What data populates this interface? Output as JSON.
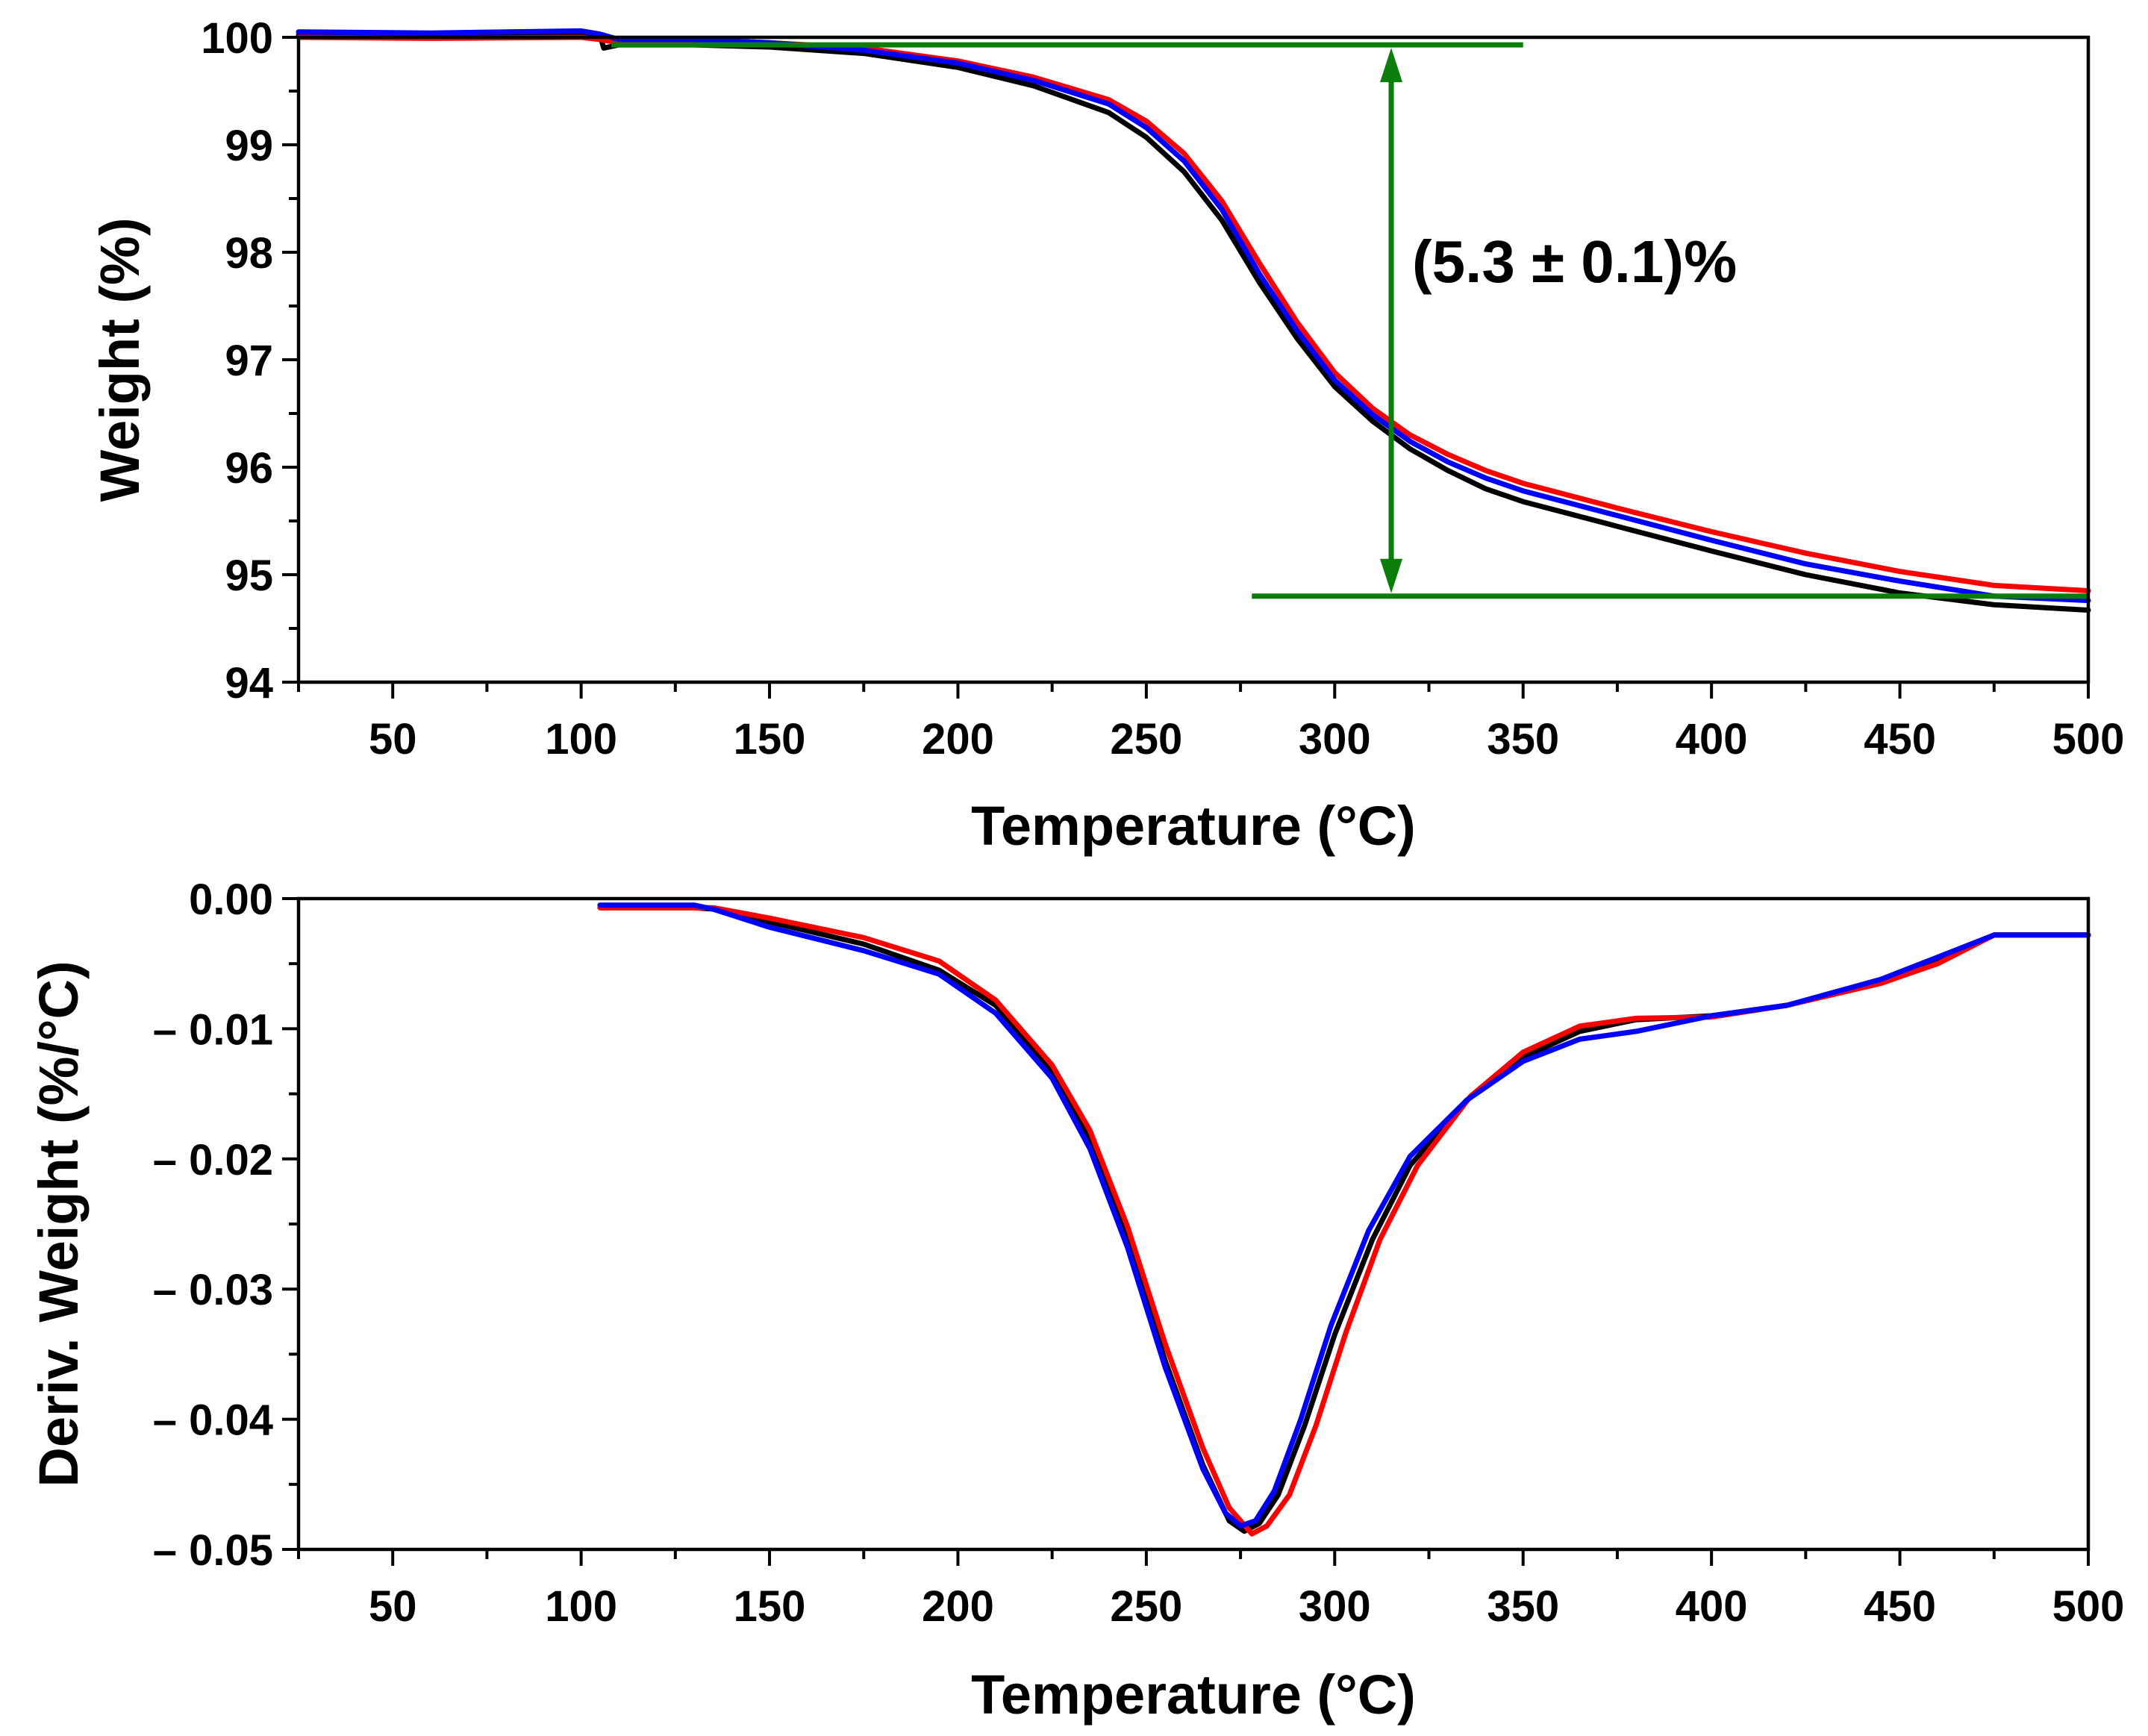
{
  "colors": {
    "black_series": "#000000",
    "red_series": "#ff0000",
    "blue_series": "#0000ff",
    "annotation": "#0a7d0a"
  },
  "chart_data": [
    {
      "type": "line",
      "panel": "top",
      "xlabel": "Temperature (°C)",
      "ylabel": "Weight (%)",
      "xlim": [
        25,
        500
      ],
      "ylim": [
        94,
        100
      ],
      "x_ticks": [
        50,
        100,
        150,
        200,
        250,
        300,
        350,
        400,
        450,
        500
      ],
      "x_tick_labels": [
        "50",
        "100",
        "150",
        "200",
        "250",
        "300",
        "350",
        "400",
        "450",
        "500"
      ],
      "y_ticks": [
        94,
        95,
        96,
        97,
        98,
        99,
        100
      ],
      "y_tick_labels": [
        "94",
        "95",
        "96",
        "97",
        "98",
        "99",
        "100"
      ],
      "annotation": {
        "text": "(5.3 ± 0.1)%",
        "upper_level": 99.93,
        "lower_level": 94.8,
        "upper_line_x": [
          108,
          350
        ],
        "lower_line_x": [
          278,
          500
        ],
        "arrow_x": 315
      },
      "series": [
        {
          "name": "sample-black",
          "color": "#000000",
          "points": [
            [
              25,
              100.02
            ],
            [
              60,
              100.01
            ],
            [
              100,
              100.03
            ],
            [
              105,
              100.02
            ],
            [
              106,
              99.9
            ],
            [
              110,
              99.93
            ],
            [
              130,
              99.93
            ],
            [
              150,
              99.91
            ],
            [
              175,
              99.85
            ],
            [
              200,
              99.72
            ],
            [
              220,
              99.55
            ],
            [
              240,
              99.3
            ],
            [
              250,
              99.07
            ],
            [
              260,
              98.75
            ],
            [
              270,
              98.3
            ],
            [
              280,
              97.72
            ],
            [
              290,
              97.2
            ],
            [
              300,
              96.75
            ],
            [
              310,
              96.43
            ],
            [
              320,
              96.17
            ],
            [
              330,
              95.97
            ],
            [
              340,
              95.8
            ],
            [
              350,
              95.68
            ],
            [
              375,
              95.45
            ],
            [
              400,
              95.22
            ],
            [
              425,
              95.0
            ],
            [
              450,
              94.83
            ],
            [
              475,
              94.72
            ],
            [
              500,
              94.67
            ]
          ]
        },
        {
          "name": "sample-red",
          "color": "#ff0000",
          "points": [
            [
              25,
              100.0
            ],
            [
              60,
              99.99
            ],
            [
              100,
              100.0
            ],
            [
              105,
              99.98
            ],
            [
              110,
              99.95
            ],
            [
              130,
              99.95
            ],
            [
              150,
              99.95
            ],
            [
              175,
              99.9
            ],
            [
              200,
              99.78
            ],
            [
              220,
              99.63
            ],
            [
              240,
              99.42
            ],
            [
              250,
              99.22
            ],
            [
              260,
              98.92
            ],
            [
              270,
              98.48
            ],
            [
              280,
              97.9
            ],
            [
              290,
              97.35
            ],
            [
              300,
              96.88
            ],
            [
              310,
              96.55
            ],
            [
              320,
              96.3
            ],
            [
              330,
              96.12
            ],
            [
              340,
              95.97
            ],
            [
              350,
              95.85
            ],
            [
              375,
              95.62
            ],
            [
              400,
              95.4
            ],
            [
              425,
              95.2
            ],
            [
              450,
              95.03
            ],
            [
              475,
              94.9
            ],
            [
              500,
              94.85
            ]
          ]
        },
        {
          "name": "sample-blue",
          "color": "#0000ff",
          "points": [
            [
              25,
              100.05
            ],
            [
              60,
              100.04
            ],
            [
              100,
              100.06
            ],
            [
              105,
              100.03
            ],
            [
              110,
              99.98
            ],
            [
              130,
              99.98
            ],
            [
              150,
              99.95
            ],
            [
              175,
              99.88
            ],
            [
              200,
              99.76
            ],
            [
              220,
              99.6
            ],
            [
              240,
              99.38
            ],
            [
              250,
              99.16
            ],
            [
              260,
              98.85
            ],
            [
              270,
              98.4
            ],
            [
              280,
              97.8
            ],
            [
              290,
              97.27
            ],
            [
              300,
              96.81
            ],
            [
              310,
              96.49
            ],
            [
              320,
              96.24
            ],
            [
              330,
              96.05
            ],
            [
              340,
              95.9
            ],
            [
              350,
              95.78
            ],
            [
              375,
              95.55
            ],
            [
              400,
              95.32
            ],
            [
              425,
              95.1
            ],
            [
              450,
              94.94
            ],
            [
              475,
              94.8
            ],
            [
              500,
              94.76
            ]
          ]
        }
      ]
    },
    {
      "type": "line",
      "panel": "bottom",
      "xlabel": "Temperature (°C)",
      "ylabel": "Deriv. Weight (%/°C)",
      "xlim": [
        25,
        500
      ],
      "ylim": [
        -0.05,
        0.0
      ],
      "x_ticks": [
        50,
        100,
        150,
        200,
        250,
        300,
        350,
        400,
        450,
        500
      ],
      "x_tick_labels": [
        "50",
        "100",
        "150",
        "200",
        "250",
        "300",
        "350",
        "400",
        "450",
        "500"
      ],
      "y_ticks": [
        0.0,
        -0.01,
        -0.02,
        -0.03,
        -0.04,
        -0.05
      ],
      "y_tick_labels": [
        "0.00",
        "– 0.01",
        "– 0.02",
        "– 0.03",
        "– 0.04",
        "– 0.05"
      ],
      "series": [
        {
          "name": "sample-black",
          "color": "#000000",
          "points": [
            [
              105,
              -0.0007
            ],
            [
              130,
              -0.0007
            ],
            [
              135,
              -0.0008
            ],
            [
              150,
              -0.0018
            ],
            [
              175,
              -0.0035
            ],
            [
              195,
              -0.0055
            ],
            [
              210,
              -0.0082
            ],
            [
              225,
              -0.0132
            ],
            [
              235,
              -0.0185
            ],
            [
              245,
              -0.0262
            ],
            [
              255,
              -0.0355
            ],
            [
              265,
              -0.0435
            ],
            [
              272,
              -0.0478
            ],
            [
              276,
              -0.0486
            ],
            [
              280,
              -0.048
            ],
            [
              285,
              -0.0458
            ],
            [
              292,
              -0.0405
            ],
            [
              300,
              -0.0335
            ],
            [
              310,
              -0.0262
            ],
            [
              320,
              -0.0205
            ],
            [
              335,
              -0.0155
            ],
            [
              350,
              -0.0122
            ],
            [
              365,
              -0.0102
            ],
            [
              380,
              -0.0093
            ],
            [
              400,
              -0.009
            ],
            [
              420,
              -0.0082
            ],
            [
              445,
              -0.0065
            ],
            [
              460,
              -0.0048
            ],
            [
              475,
              -0.0028
            ],
            [
              500,
              -0.0028
            ]
          ]
        },
        {
          "name": "sample-red",
          "color": "#ff0000",
          "points": [
            [
              105,
              -0.0007
            ],
            [
              130,
              -0.0007
            ],
            [
              135,
              -0.0007
            ],
            [
              150,
              -0.0015
            ],
            [
              175,
              -0.003
            ],
            [
              195,
              -0.0048
            ],
            [
              210,
              -0.0078
            ],
            [
              225,
              -0.0128
            ],
            [
              235,
              -0.0178
            ],
            [
              245,
              -0.0252
            ],
            [
              255,
              -0.0342
            ],
            [
              265,
              -0.0422
            ],
            [
              272,
              -0.0468
            ],
            [
              278,
              -0.0488
            ],
            [
              282,
              -0.0482
            ],
            [
              288,
              -0.0458
            ],
            [
              295,
              -0.0405
            ],
            [
              303,
              -0.0333
            ],
            [
              312,
              -0.0262
            ],
            [
              322,
              -0.0205
            ],
            [
              336,
              -0.0152
            ],
            [
              350,
              -0.0118
            ],
            [
              365,
              -0.0098
            ],
            [
              380,
              -0.0092
            ],
            [
              400,
              -0.0091
            ],
            [
              420,
              -0.0082
            ],
            [
              445,
              -0.0065
            ],
            [
              460,
              -0.005
            ],
            [
              475,
              -0.0028
            ],
            [
              500,
              -0.0028
            ]
          ]
        },
        {
          "name": "sample-blue",
          "color": "#0000ff",
          "points": [
            [
              105,
              -0.0005
            ],
            [
              130,
              -0.0005
            ],
            [
              135,
              -0.0008
            ],
            [
              150,
              -0.0022
            ],
            [
              175,
              -0.004
            ],
            [
              195,
              -0.0058
            ],
            [
              210,
              -0.0088
            ],
            [
              225,
              -0.0138
            ],
            [
              235,
              -0.0192
            ],
            [
              245,
              -0.0268
            ],
            [
              255,
              -0.036
            ],
            [
              265,
              -0.0438
            ],
            [
              271,
              -0.0472
            ],
            [
              275,
              -0.0482
            ],
            [
              279,
              -0.0478
            ],
            [
              284,
              -0.0455
            ],
            [
              291,
              -0.04
            ],
            [
              299,
              -0.0328
            ],
            [
              309,
              -0.0255
            ],
            [
              320,
              -0.0198
            ],
            [
              335,
              -0.0155
            ],
            [
              350,
              -0.0125
            ],
            [
              365,
              -0.0108
            ],
            [
              380,
              -0.0102
            ],
            [
              400,
              -0.009
            ],
            [
              420,
              -0.0082
            ],
            [
              445,
              -0.0062
            ],
            [
              460,
              -0.0045
            ],
            [
              475,
              -0.0028
            ],
            [
              500,
              -0.0028
            ]
          ]
        }
      ]
    }
  ]
}
